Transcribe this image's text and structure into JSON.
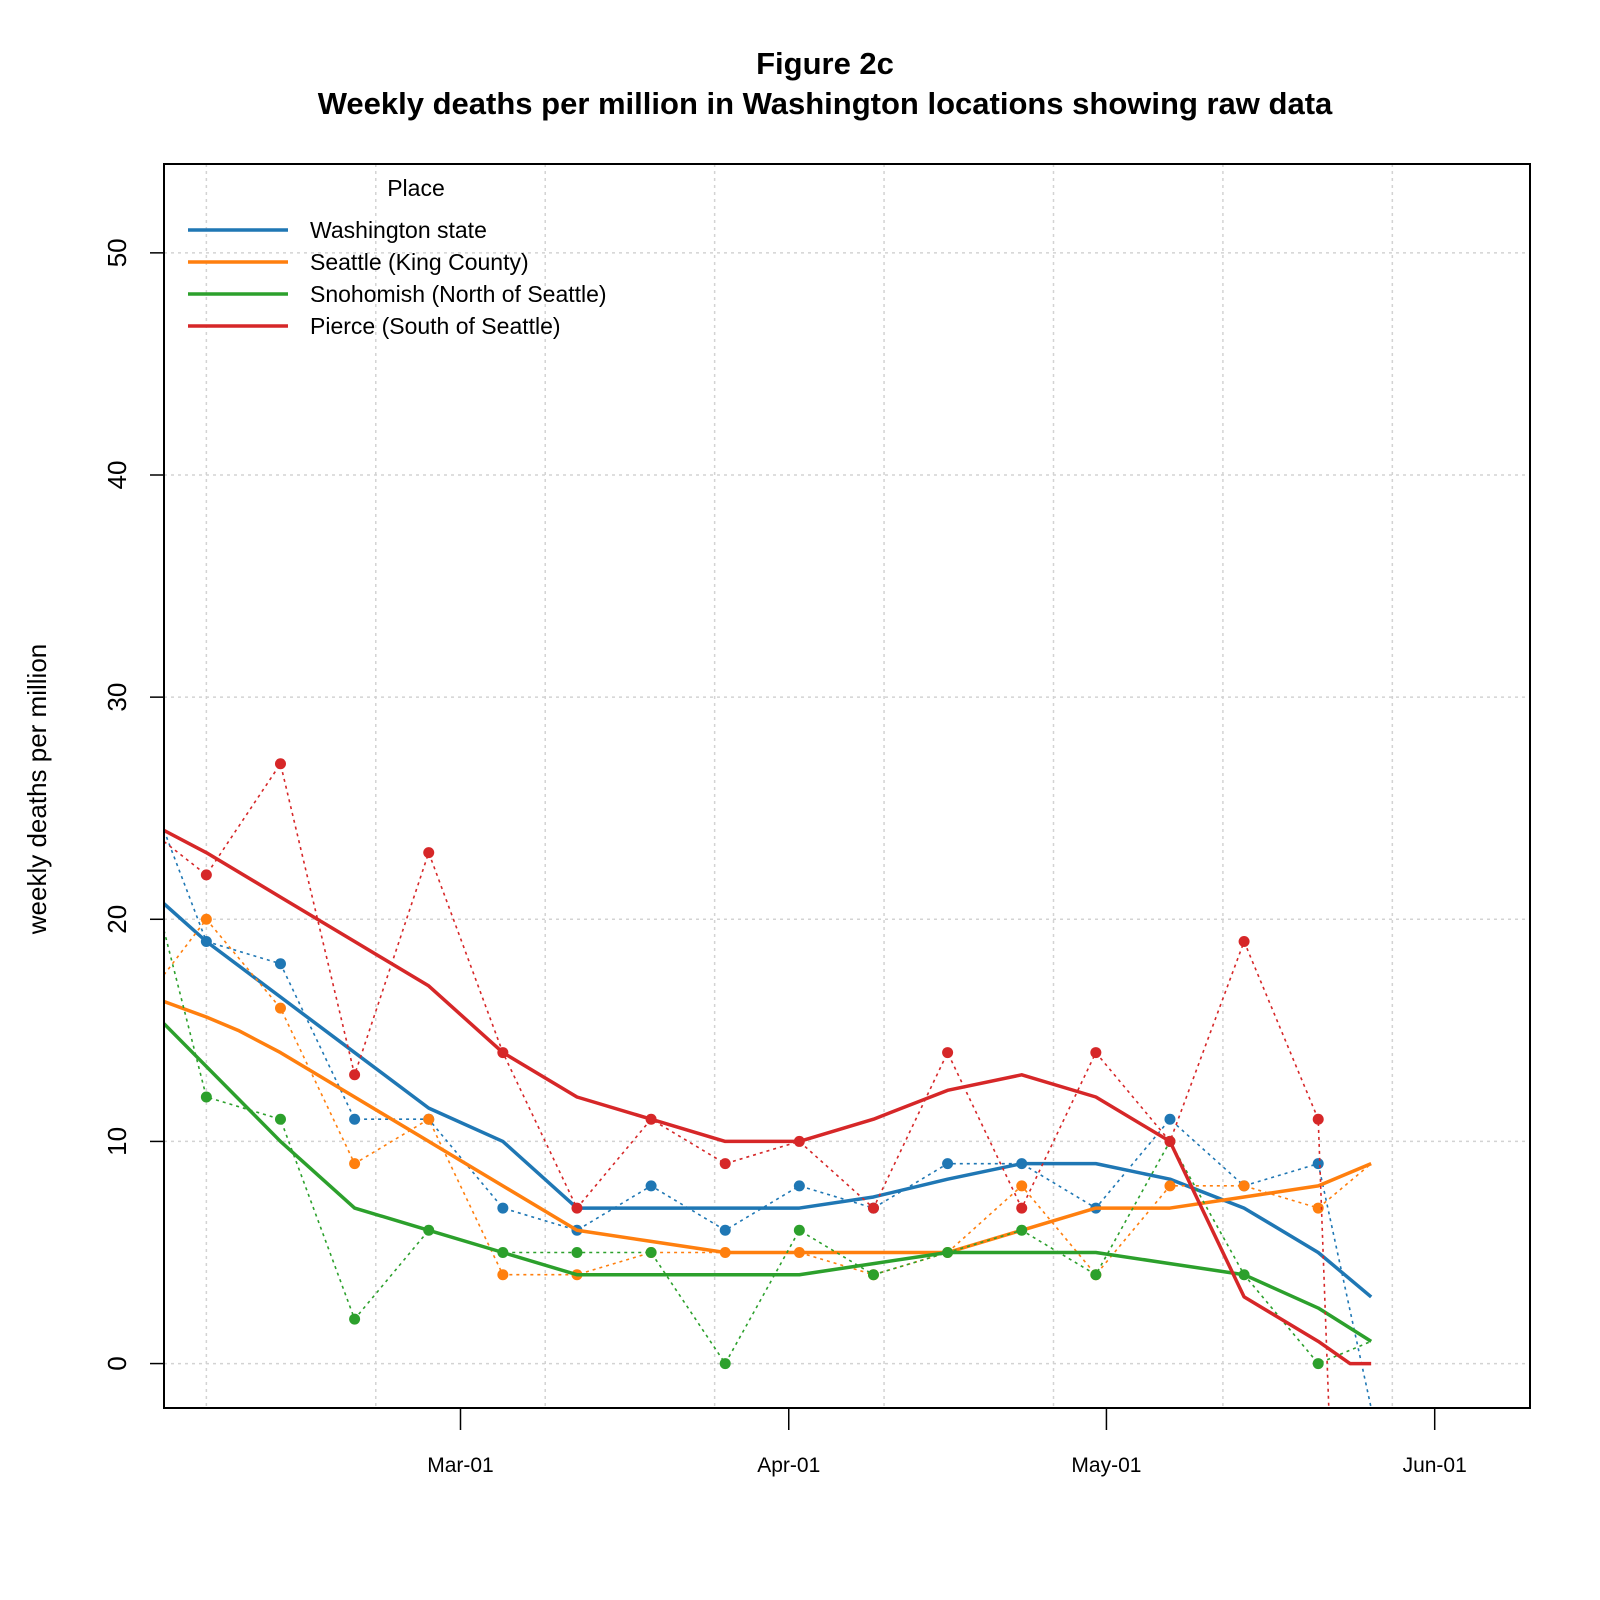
{
  "chart_data": {
    "type": "line",
    "title": "Figure 2c",
    "subtitle": "Weekly deaths per million in Washington locations showing raw data",
    "ylabel": "weekly deaths per million",
    "xlabel": "",
    "ylim": [
      -2,
      54
    ],
    "yticks": [
      0,
      10,
      20,
      30,
      40,
      50
    ],
    "xlim": [
      "2021-02-01",
      "2021-06-10"
    ],
    "xticks": [
      {
        "date": "2021-03-01",
        "label": "Mar-01"
      },
      {
        "date": "2021-04-01",
        "label": "Apr-01"
      },
      {
        "date": "2021-05-01",
        "label": "May-01"
      },
      {
        "date": "2021-06-01",
        "label": "Jun-01"
      }
    ],
    "grid": true,
    "legend": {
      "title": "Place",
      "position": "top-left"
    },
    "series": [
      {
        "name": "Washington state",
        "color": "#1f77b4",
        "raw": [
          {
            "x": "2021-02-01",
            "y": 24
          },
          {
            "x": "2021-02-05",
            "y": 19
          },
          {
            "x": "2021-02-12",
            "y": 18
          },
          {
            "x": "2021-02-19",
            "y": 11
          },
          {
            "x": "2021-02-26",
            "y": 11
          },
          {
            "x": "2021-03-05",
            "y": 7
          },
          {
            "x": "2021-03-12",
            "y": 6
          },
          {
            "x": "2021-03-19",
            "y": 8
          },
          {
            "x": "2021-03-26",
            "y": 6
          },
          {
            "x": "2021-04-02",
            "y": 8
          },
          {
            "x": "2021-04-09",
            "y": 7
          },
          {
            "x": "2021-04-16",
            "y": 9
          },
          {
            "x": "2021-04-23",
            "y": 9
          },
          {
            "x": "2021-04-30",
            "y": 7
          },
          {
            "x": "2021-05-07",
            "y": 11
          },
          {
            "x": "2021-05-14",
            "y": 8
          },
          {
            "x": "2021-05-21",
            "y": 9
          },
          {
            "x": "2021-05-26",
            "y": -2
          }
        ],
        "trend": [
          {
            "x": "2021-02-01",
            "y": 20.7
          },
          {
            "x": "2021-02-05",
            "y": 19
          },
          {
            "x": "2021-02-12",
            "y": 16.5
          },
          {
            "x": "2021-02-19",
            "y": 14
          },
          {
            "x": "2021-02-26",
            "y": 11.5
          },
          {
            "x": "2021-03-05",
            "y": 10
          },
          {
            "x": "2021-03-12",
            "y": 7
          },
          {
            "x": "2021-03-19",
            "y": 7
          },
          {
            "x": "2021-03-26",
            "y": 7
          },
          {
            "x": "2021-04-02",
            "y": 7
          },
          {
            "x": "2021-04-09",
            "y": 7.5
          },
          {
            "x": "2021-04-16",
            "y": 8.3
          },
          {
            "x": "2021-04-23",
            "y": 9
          },
          {
            "x": "2021-04-30",
            "y": 9
          },
          {
            "x": "2021-05-07",
            "y": 8.3
          },
          {
            "x": "2021-05-14",
            "y": 7
          },
          {
            "x": "2021-05-21",
            "y": 5
          },
          {
            "x": "2021-05-26",
            "y": 3
          }
        ]
      },
      {
        "name": "Seattle (King County)",
        "color": "#ff7f0e",
        "raw": [
          {
            "x": "2021-02-01",
            "y": 17.5
          },
          {
            "x": "2021-02-05",
            "y": 20
          },
          {
            "x": "2021-02-12",
            "y": 16
          },
          {
            "x": "2021-02-19",
            "y": 9
          },
          {
            "x": "2021-02-26",
            "y": 11
          },
          {
            "x": "2021-03-05",
            "y": 4
          },
          {
            "x": "2021-03-12",
            "y": 4
          },
          {
            "x": "2021-03-19",
            "y": 5
          },
          {
            "x": "2021-03-26",
            "y": 5
          },
          {
            "x": "2021-04-02",
            "y": 5
          },
          {
            "x": "2021-04-09",
            "y": 4
          },
          {
            "x": "2021-04-16",
            "y": 5
          },
          {
            "x": "2021-04-23",
            "y": 8
          },
          {
            "x": "2021-04-30",
            "y": 4
          },
          {
            "x": "2021-05-07",
            "y": 8
          },
          {
            "x": "2021-05-14",
            "y": 8
          },
          {
            "x": "2021-05-21",
            "y": 7
          },
          {
            "x": "2021-05-26",
            "y": 9
          }
        ],
        "trend": [
          {
            "x": "2021-02-01",
            "y": 16.3
          },
          {
            "x": "2021-02-05",
            "y": 15.6
          },
          {
            "x": "2021-02-08",
            "y": 15
          },
          {
            "x": "2021-02-12",
            "y": 14
          },
          {
            "x": "2021-02-19",
            "y": 12
          },
          {
            "x": "2021-02-26",
            "y": 10
          },
          {
            "x": "2021-03-05",
            "y": 8
          },
          {
            "x": "2021-03-12",
            "y": 6
          },
          {
            "x": "2021-03-19",
            "y": 5.5
          },
          {
            "x": "2021-03-26",
            "y": 5
          },
          {
            "x": "2021-04-02",
            "y": 5
          },
          {
            "x": "2021-04-09",
            "y": 5
          },
          {
            "x": "2021-04-16",
            "y": 5
          },
          {
            "x": "2021-04-23",
            "y": 6
          },
          {
            "x": "2021-04-30",
            "y": 7
          },
          {
            "x": "2021-05-07",
            "y": 7
          },
          {
            "x": "2021-05-14",
            "y": 7.5
          },
          {
            "x": "2021-05-21",
            "y": 8
          },
          {
            "x": "2021-05-26",
            "y": 9
          }
        ]
      },
      {
        "name": "Snohomish (North of Seattle)",
        "color": "#2ca02c",
        "raw": [
          {
            "x": "2021-02-01",
            "y": 19.5
          },
          {
            "x": "2021-02-05",
            "y": 12
          },
          {
            "x": "2021-02-12",
            "y": 11
          },
          {
            "x": "2021-02-19",
            "y": 2
          },
          {
            "x": "2021-02-26",
            "y": 6
          },
          {
            "x": "2021-03-05",
            "y": 5
          },
          {
            "x": "2021-03-12",
            "y": 5
          },
          {
            "x": "2021-03-19",
            "y": 5
          },
          {
            "x": "2021-03-26",
            "y": 0
          },
          {
            "x": "2021-04-02",
            "y": 6
          },
          {
            "x": "2021-04-09",
            "y": 4
          },
          {
            "x": "2021-04-16",
            "y": 5
          },
          {
            "x": "2021-04-23",
            "y": 6
          },
          {
            "x": "2021-04-30",
            "y": 4
          },
          {
            "x": "2021-05-07",
            "y": 10
          },
          {
            "x": "2021-05-14",
            "y": 4
          },
          {
            "x": "2021-05-21",
            "y": 0
          },
          {
            "x": "2021-05-26",
            "y": 1
          }
        ],
        "trend": [
          {
            "x": "2021-02-01",
            "y": 15.3
          },
          {
            "x": "2021-02-12",
            "y": 10
          },
          {
            "x": "2021-02-19",
            "y": 7
          },
          {
            "x": "2021-02-26",
            "y": 6
          },
          {
            "x": "2021-03-05",
            "y": 5
          },
          {
            "x": "2021-03-12",
            "y": 4
          },
          {
            "x": "2021-03-19",
            "y": 4
          },
          {
            "x": "2021-03-26",
            "y": 4
          },
          {
            "x": "2021-04-02",
            "y": 4
          },
          {
            "x": "2021-04-09",
            "y": 4.5
          },
          {
            "x": "2021-04-16",
            "y": 5
          },
          {
            "x": "2021-04-23",
            "y": 5
          },
          {
            "x": "2021-04-30",
            "y": 5
          },
          {
            "x": "2021-05-07",
            "y": 4.5
          },
          {
            "x": "2021-05-14",
            "y": 4
          },
          {
            "x": "2021-05-21",
            "y": 2.5
          },
          {
            "x": "2021-05-26",
            "y": 1
          }
        ]
      },
      {
        "name": "Pierce (South of Seattle)",
        "color": "#d62728",
        "raw": [
          {
            "x": "2021-02-01",
            "y": 23.5
          },
          {
            "x": "2021-02-05",
            "y": 22
          },
          {
            "x": "2021-02-12",
            "y": 27
          },
          {
            "x": "2021-02-19",
            "y": 13
          },
          {
            "x": "2021-02-26",
            "y": 23
          },
          {
            "x": "2021-03-05",
            "y": 14
          },
          {
            "x": "2021-03-12",
            "y": 7
          },
          {
            "x": "2021-03-19",
            "y": 11
          },
          {
            "x": "2021-03-26",
            "y": 9
          },
          {
            "x": "2021-04-02",
            "y": 10
          },
          {
            "x": "2021-04-09",
            "y": 7
          },
          {
            "x": "2021-04-16",
            "y": 14
          },
          {
            "x": "2021-04-23",
            "y": 7
          },
          {
            "x": "2021-04-30",
            "y": 14
          },
          {
            "x": "2021-05-07",
            "y": 10
          },
          {
            "x": "2021-05-14",
            "y": 19
          },
          {
            "x": "2021-05-21",
            "y": 11
          },
          {
            "x": "2021-05-22",
            "y": -2
          }
        ],
        "trend": [
          {
            "x": "2021-02-01",
            "y": 24
          },
          {
            "x": "2021-02-05",
            "y": 23
          },
          {
            "x": "2021-02-12",
            "y": 21
          },
          {
            "x": "2021-02-19",
            "y": 19
          },
          {
            "x": "2021-02-26",
            "y": 17
          },
          {
            "x": "2021-03-05",
            "y": 14
          },
          {
            "x": "2021-03-12",
            "y": 12
          },
          {
            "x": "2021-03-19",
            "y": 11
          },
          {
            "x": "2021-03-26",
            "y": 10
          },
          {
            "x": "2021-04-02",
            "y": 10
          },
          {
            "x": "2021-04-09",
            "y": 11
          },
          {
            "x": "2021-04-16",
            "y": 12.3
          },
          {
            "x": "2021-04-23",
            "y": 13
          },
          {
            "x": "2021-04-30",
            "y": 12
          },
          {
            "x": "2021-05-07",
            "y": 10
          },
          {
            "x": "2021-05-14",
            "y": 3
          },
          {
            "x": "2021-05-21",
            "y": 1
          },
          {
            "x": "2021-05-24",
            "y": 0
          },
          {
            "x": "2021-05-26",
            "y": 0
          }
        ]
      }
    ]
  }
}
